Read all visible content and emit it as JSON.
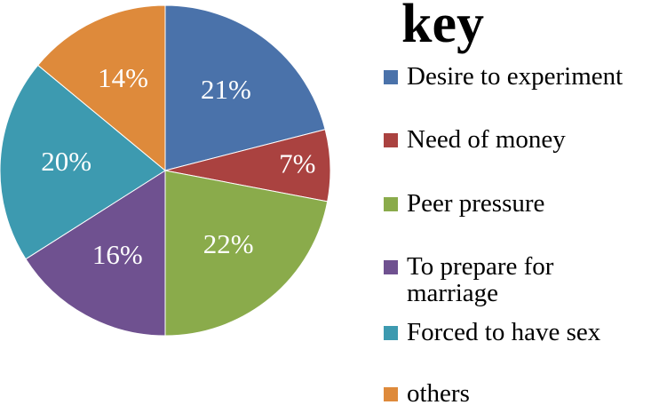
{
  "chart_data": {
    "type": "pie",
    "legend_title": "key",
    "categories": [
      "Desire to experiment",
      "Need of money",
      "Peer pressure",
      "To prepare for\nmarriage",
      "Forced to have sex",
      "others"
    ],
    "values": [
      21,
      7,
      22,
      16,
      20,
      14
    ],
    "value_labels": [
      "21%",
      "7%",
      "22%",
      "16%",
      "20%",
      "14%"
    ],
    "colors": [
      "#4a72aa",
      "#aa4240",
      "#8aab4b",
      "#6f5190",
      "#3d9ab0",
      "#de8a3b"
    ],
    "legend": "right"
  }
}
